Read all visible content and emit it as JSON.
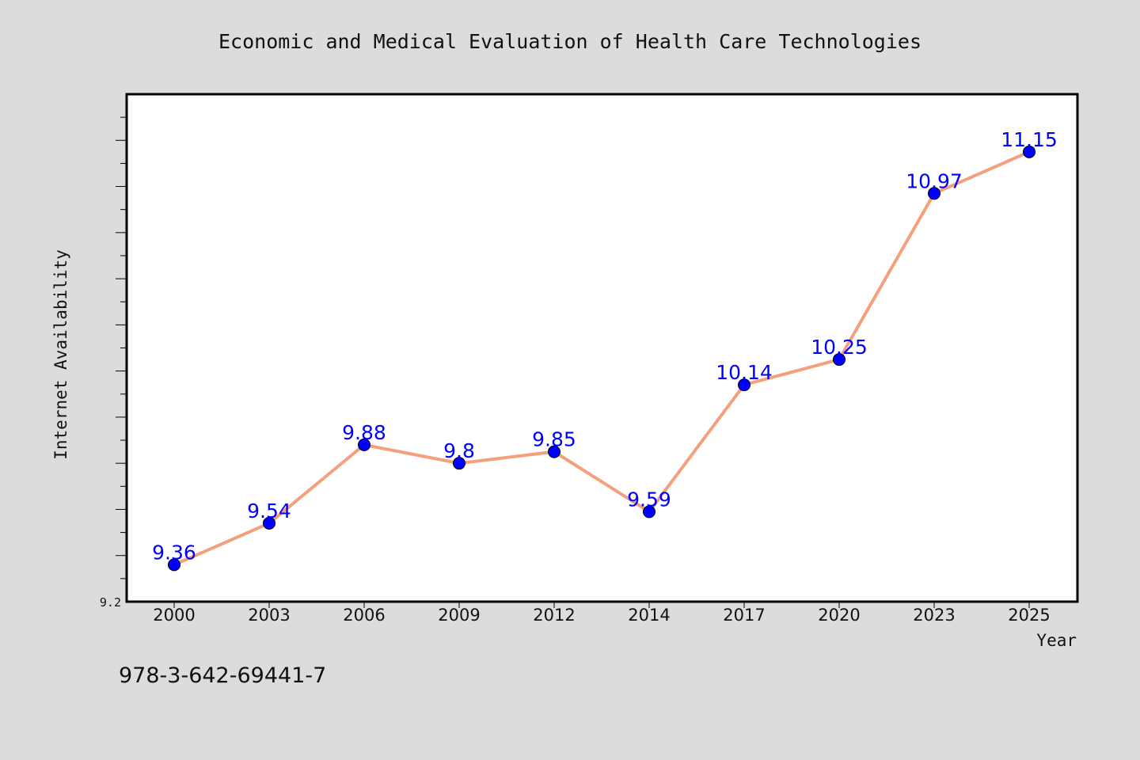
{
  "chart_data": {
    "type": "line",
    "title": "Economic and Medical Evaluation of Health Care Technologies",
    "xlabel": "Year",
    "ylabel": "Internet Availability",
    "categories": [
      "2000",
      "2003",
      "2006",
      "2009",
      "2012",
      "2014",
      "2017",
      "2020",
      "2023",
      "2025"
    ],
    "series": [
      {
        "values": [
          9.36,
          9.54,
          9.88,
          9.8,
          9.85,
          9.59,
          10.14,
          10.25,
          10.97,
          11.15
        ]
      }
    ],
    "data_labels": [
      "9.36",
      "9.54",
      "9.88",
      "9.8",
      "9.85",
      "9.59",
      "10.14",
      "10.25",
      "10.97",
      "11.15"
    ],
    "ylim": [
      9.2,
      11.4
    ],
    "yticks_labeled": [
      "9.2"
    ],
    "grid": false,
    "line_color": "#f4a07c",
    "marker_color": "#0000ff",
    "label_color": "#0000ff"
  },
  "footer": {
    "isbn": "978-3-642-69441-7"
  }
}
